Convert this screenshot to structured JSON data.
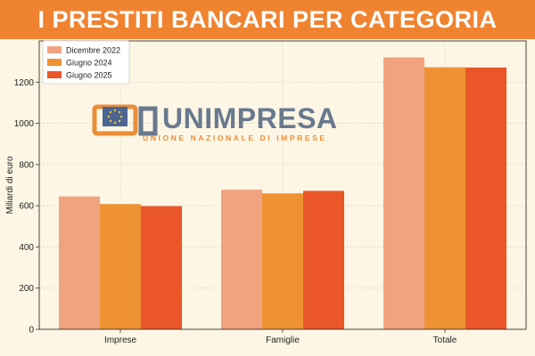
{
  "header": {
    "title": "I PRESTITI BANCARI PER CATEGORIA"
  },
  "logo": {
    "name": "UNIMPRESA",
    "tagline": "UNIONE NAZIONALE DI IMPRESE"
  },
  "colors": {
    "banner": "#f0832f",
    "background": "#fdf6e4",
    "series": [
      "#f1a37f",
      "#ee9234",
      "#ea5628"
    ],
    "logo_text": "#5d6f88",
    "logo_mark": "#e9862c"
  },
  "chart_data": {
    "type": "bar",
    "title": "",
    "xlabel": "",
    "ylabel": "Miliardi di euro",
    "categories": [
      "Imprese",
      "Famiglie",
      "Totale"
    ],
    "series": [
      {
        "name": "Dicembre 2022",
        "values": [
          645,
          678,
          1320
        ]
      },
      {
        "name": "Giugno 2024",
        "values": [
          608,
          660,
          1272
        ]
      },
      {
        "name": "Giugno 2025",
        "values": [
          598,
          672,
          1271
        ]
      }
    ],
    "ylim": [
      0,
      1400
    ],
    "yticks": [
      0,
      200,
      400,
      600,
      800,
      1000,
      1200
    ],
    "grid": true,
    "legend_position": "top-left"
  }
}
